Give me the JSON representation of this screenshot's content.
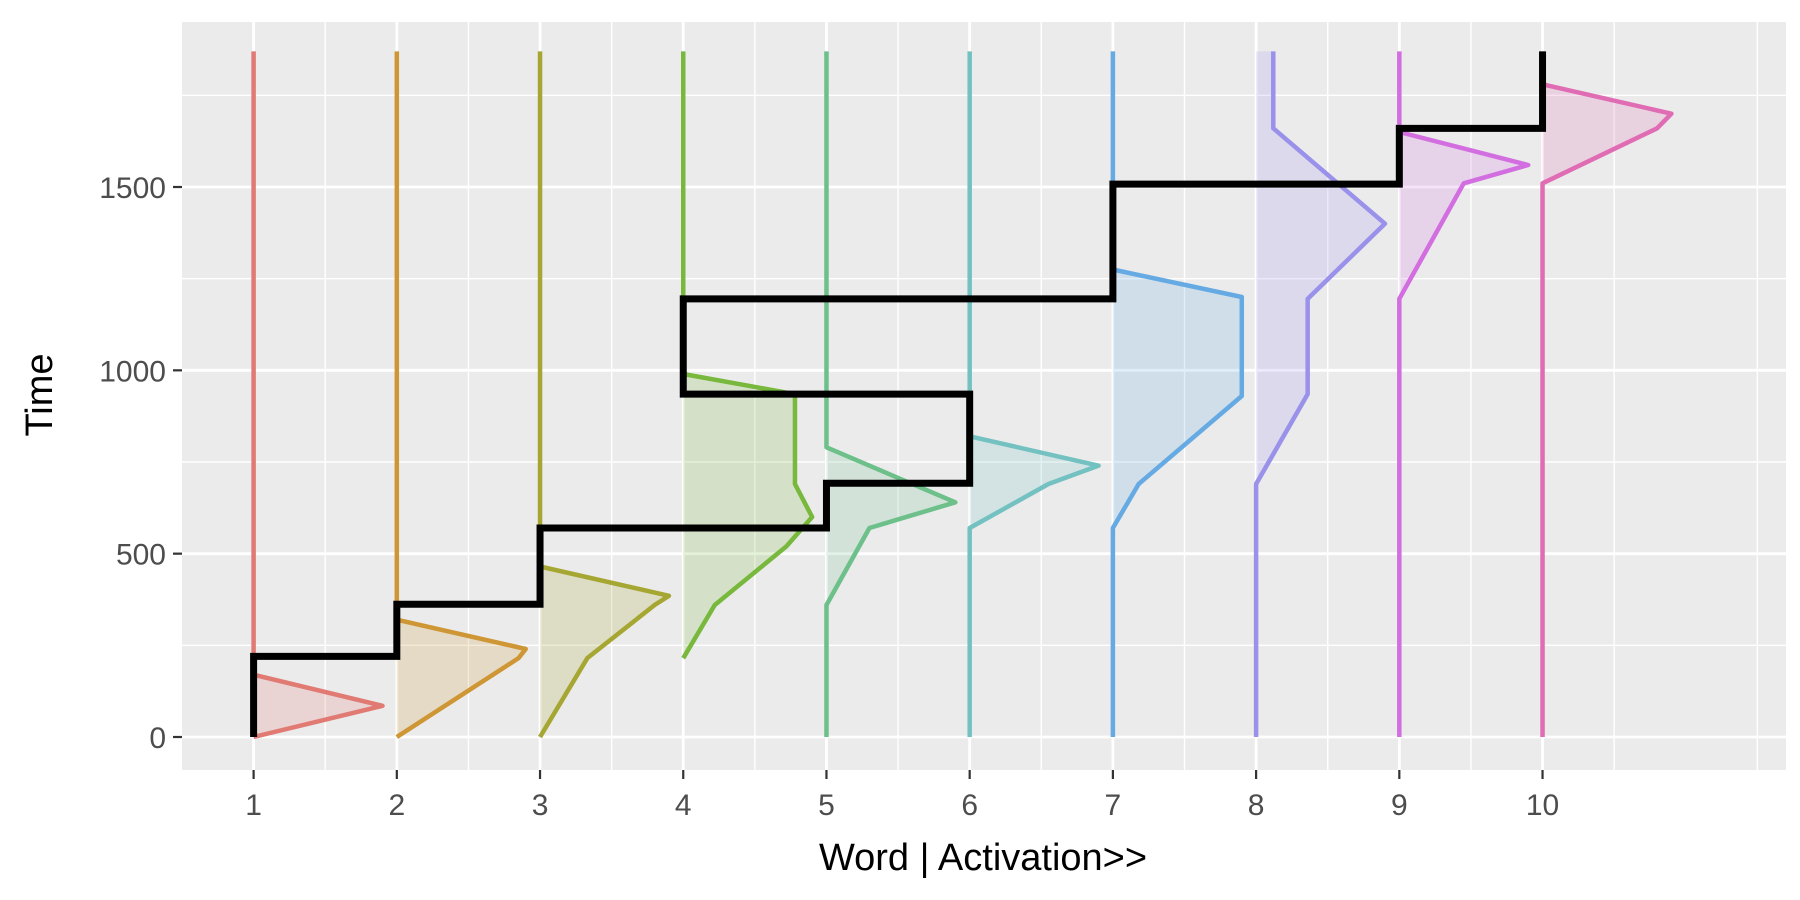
{
  "chart_data": {
    "type": "area",
    "xlabel": "Word | Activation>>",
    "ylabel": "Time",
    "xlim": [
      0.5,
      11.7
    ],
    "ylim": [
      -90,
      1950
    ],
    "x_ticks": [
      1,
      2,
      3,
      4,
      5,
      6,
      7,
      8,
      9,
      10
    ],
    "y_ticks": [
      0,
      500,
      1000,
      1500
    ],
    "grid": true,
    "legend": "none",
    "line_top": 1870,
    "series": [
      {
        "word": 1,
        "color": "#E07A73",
        "points": [
          [
            0,
            0
          ],
          [
            0.9,
            85
          ],
          [
            0,
            170
          ],
          [
            0,
            1870
          ]
        ]
      },
      {
        "word": 2,
        "color": "#CE9634",
        "points": [
          [
            0,
            0
          ],
          [
            0.85,
            215
          ],
          [
            0.9,
            240
          ],
          [
            0,
            320
          ],
          [
            0,
            1870
          ]
        ]
      },
      {
        "word": 3,
        "color": "#A6A632",
        "points": [
          [
            0,
            0
          ],
          [
            0.33,
            215
          ],
          [
            0.8,
            360
          ],
          [
            0.9,
            385
          ],
          [
            0,
            465
          ],
          [
            0,
            1870
          ]
        ]
      },
      {
        "word": 4,
        "color": "#78B83C",
        "points": [
          [
            0,
            215
          ],
          [
            0.22,
            360
          ],
          [
            0.72,
            520
          ],
          [
            0.9,
            600
          ],
          [
            0.78,
            690
          ],
          [
            0.78,
            935
          ],
          [
            0,
            990
          ],
          [
            0,
            1870
          ]
        ]
      },
      {
        "word": 5,
        "color": "#6DC08A",
        "points": [
          [
            0,
            0
          ],
          [
            0,
            360
          ],
          [
            0.3,
            570
          ],
          [
            0.9,
            640
          ],
          [
            0,
            790
          ],
          [
            0,
            1870
          ]
        ]
      },
      {
        "word": 6,
        "color": "#73C1C1",
        "points": [
          [
            0,
            0
          ],
          [
            0,
            570
          ],
          [
            0.55,
            690
          ],
          [
            0.9,
            740
          ],
          [
            0,
            820
          ],
          [
            0,
            1870
          ]
        ]
      },
      {
        "word": 7,
        "color": "#66AAE3",
        "points": [
          [
            0,
            0
          ],
          [
            0,
            570
          ],
          [
            0.18,
            690
          ],
          [
            0.9,
            930
          ],
          [
            0.9,
            1200
          ],
          [
            0,
            1275
          ],
          [
            0,
            1870
          ]
        ]
      },
      {
        "word": 8,
        "color": "#9A92EA",
        "points": [
          [
            0,
            0
          ],
          [
            0,
            690
          ],
          [
            0.36,
            935
          ],
          [
            0.36,
            1195
          ],
          [
            0.9,
            1400
          ],
          [
            0.12,
            1660
          ],
          [
            0.12,
            1870
          ]
        ]
      },
      {
        "word": 9,
        "color": "#D26EE0",
        "points": [
          [
            0,
            0
          ],
          [
            0,
            1195
          ],
          [
            0.45,
            1510
          ],
          [
            0.9,
            1560
          ],
          [
            0,
            1650
          ],
          [
            0,
            1870
          ]
        ]
      },
      {
        "word": 10,
        "color": "#E06CB4",
        "points": [
          [
            0,
            0
          ],
          [
            0,
            1510
          ],
          [
            0.8,
            1660
          ],
          [
            0.9,
            1700
          ],
          [
            0,
            1780
          ],
          [
            0,
            1870
          ]
        ]
      }
    ],
    "path_line": {
      "color": "#000000",
      "points": [
        [
          1,
          0
        ],
        [
          1,
          220
        ],
        [
          2,
          220
        ],
        [
          2,
          362
        ],
        [
          3,
          362
        ],
        [
          3,
          570
        ],
        [
          5,
          570
        ],
        [
          5,
          692
        ],
        [
          6,
          692
        ],
        [
          6,
          935
        ],
        [
          4,
          935
        ],
        [
          4,
          1195
        ],
        [
          7,
          1195
        ],
        [
          7,
          1508
        ],
        [
          9,
          1508
        ],
        [
          9,
          1660
        ],
        [
          10,
          1660
        ],
        [
          10,
          1870
        ]
      ]
    }
  },
  "style": {
    "panel_bg": "#EBEBEB",
    "grid_color": "#FFFFFF",
    "text_color": "#4D4D4D"
  }
}
